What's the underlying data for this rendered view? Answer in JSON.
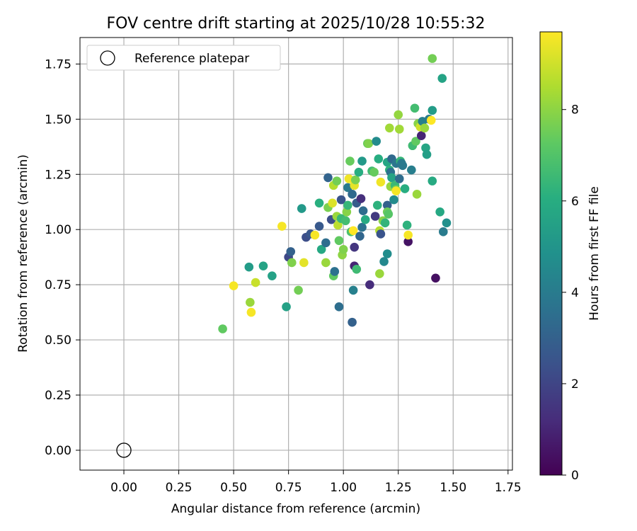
{
  "chart_data": {
    "type": "scatter",
    "title": "FOV centre drift starting at 2025/10/28 10:55:32",
    "xlabel": "Angular distance from reference (arcmin)",
    "ylabel": "Rotation from reference (arcmin)",
    "xlim": [
      -0.2,
      1.77
    ],
    "ylim": [
      -0.09,
      1.87
    ],
    "xticks": [
      0.0,
      0.25,
      0.5,
      0.75,
      1.0,
      1.25,
      1.5,
      1.75
    ],
    "xtick_labels": [
      "0.00",
      "0.25",
      "0.50",
      "0.75",
      "1.00",
      "1.25",
      "1.50",
      "1.75"
    ],
    "yticks": [
      0.0,
      0.25,
      0.5,
      0.75,
      1.0,
      1.25,
      1.5,
      1.75
    ],
    "ytick_labels": [
      "0.00",
      "0.25",
      "0.50",
      "0.75",
      "1.00",
      "1.25",
      "1.50",
      "1.75"
    ],
    "grid": true,
    "legend": {
      "position": "top-left",
      "label": "Reference platepar"
    },
    "reference_point": {
      "x": 0.0,
      "y": 0.0
    },
    "colorbar": {
      "label": "Hours from first FF file",
      "min": 0,
      "max": 9.7,
      "ticks": [
        0,
        2,
        4,
        6,
        8
      ],
      "tick_labels": [
        "0",
        "2",
        "4",
        "6",
        "8"
      ],
      "colormap": "viridis"
    },
    "points": [
      [
        0.45,
        0.55,
        7.3
      ],
      [
        0.5,
        0.745,
        9.6
      ],
      [
        0.57,
        0.83,
        5.3
      ],
      [
        0.575,
        0.67,
        8.2
      ],
      [
        0.58,
        0.625,
        9.6
      ],
      [
        0.6,
        0.76,
        8.9
      ],
      [
        0.635,
        0.835,
        5.6
      ],
      [
        0.675,
        0.79,
        5.5
      ],
      [
        0.72,
        1.015,
        9.6
      ],
      [
        0.74,
        0.65,
        5.5
      ],
      [
        0.75,
        0.875,
        2.1
      ],
      [
        0.76,
        0.9,
        3.0
      ],
      [
        0.765,
        0.85,
        7.8
      ],
      [
        0.795,
        0.725,
        7.6
      ],
      [
        0.81,
        1.095,
        5.2
      ],
      [
        0.82,
        0.85,
        9.3
      ],
      [
        0.83,
        0.965,
        2.3
      ],
      [
        0.85,
        0.98,
        2.6
      ],
      [
        0.87,
        0.975,
        9.6
      ],
      [
        0.89,
        1.12,
        6.1
      ],
      [
        0.89,
        1.015,
        2.7
      ],
      [
        0.9,
        0.91,
        5.8
      ],
      [
        0.92,
        0.94,
        3.5
      ],
      [
        0.92,
        0.85,
        8.2
      ],
      [
        0.93,
        1.1,
        7.7
      ],
      [
        0.93,
        1.235,
        3.1
      ],
      [
        0.945,
        1.045,
        2.3
      ],
      [
        0.95,
        1.12,
        9.2
      ],
      [
        0.955,
        0.79,
        7.3
      ],
      [
        0.955,
        1.2,
        8.6
      ],
      [
        0.96,
        0.81,
        3.6
      ],
      [
        0.97,
        1.06,
        8.2
      ],
      [
        0.97,
        1.22,
        7.6
      ],
      [
        0.975,
        1.02,
        8.7
      ],
      [
        0.98,
        0.65,
        3.5
      ],
      [
        0.98,
        0.95,
        7.3
      ],
      [
        0.99,
        1.05,
        6.5
      ],
      [
        0.99,
        1.135,
        2.5
      ],
      [
        0.995,
        0.885,
        8.0
      ],
      [
        1.0,
        0.91,
        7.8
      ],
      [
        1.01,
        1.04,
        6.7
      ],
      [
        1.015,
        1.08,
        7.9
      ],
      [
        1.02,
        1.11,
        6.4
      ],
      [
        1.02,
        1.19,
        4.0
      ],
      [
        1.025,
        1.23,
        9.5
      ],
      [
        1.03,
        1.31,
        7.4
      ],
      [
        1.035,
        0.99,
        6.9
      ],
      [
        1.04,
        0.58,
        3.0
      ],
      [
        1.04,
        1.16,
        3.3
      ],
      [
        1.045,
        0.995,
        9.8
      ],
      [
        1.045,
        0.725,
        4.2
      ],
      [
        1.05,
        0.835,
        1.0
      ],
      [
        1.05,
        0.92,
        1.5
      ],
      [
        1.05,
        1.2,
        9.3
      ],
      [
        1.055,
        1.225,
        7.7
      ],
      [
        1.06,
        0.82,
        6.6
      ],
      [
        1.06,
        1.12,
        2.8
      ],
      [
        1.07,
        1.26,
        6.0
      ],
      [
        1.075,
        0.97,
        3.2
      ],
      [
        1.08,
        1.14,
        1.3
      ],
      [
        1.085,
        1.31,
        5.2
      ],
      [
        1.085,
        1.01,
        3.6
      ],
      [
        1.09,
        1.085,
        3.4
      ],
      [
        1.1,
        1.045,
        5.9
      ],
      [
        1.11,
        1.39,
        7.4
      ],
      [
        1.115,
        1.39,
        7.8
      ],
      [
        1.12,
        0.75,
        1.2
      ],
      [
        1.13,
        1.265,
        6.6
      ],
      [
        1.14,
        1.26,
        7.4
      ],
      [
        1.145,
        1.06,
        1.6
      ],
      [
        1.15,
        1.4,
        4.6
      ],
      [
        1.155,
        1.11,
        6.2
      ],
      [
        1.16,
        1.32,
        6.0
      ],
      [
        1.165,
        0.8,
        8.2
      ],
      [
        1.165,
        0.995,
        8.6
      ],
      [
        1.17,
        0.98,
        2.5
      ],
      [
        1.17,
        1.215,
        9.5
      ],
      [
        1.18,
        1.04,
        7.9
      ],
      [
        1.185,
        0.855,
        4.5
      ],
      [
        1.19,
        1.03,
        6.3
      ],
      [
        1.2,
        1.11,
        3.0
      ],
      [
        1.2,
        0.89,
        4.7
      ],
      [
        1.2,
        1.08,
        7.5
      ],
      [
        1.2,
        1.305,
        5.7
      ],
      [
        1.205,
        1.07,
        7.1
      ],
      [
        1.21,
        1.27,
        6.2
      ],
      [
        1.21,
        1.46,
        8.3
      ],
      [
        1.215,
        1.195,
        8.1
      ],
      [
        1.215,
        1.26,
        3.6
      ],
      [
        1.22,
        1.32,
        3.3
      ],
      [
        1.22,
        1.235,
        5.6
      ],
      [
        1.23,
        1.135,
        4.6
      ],
      [
        1.235,
        1.2,
        6.5
      ],
      [
        1.24,
        1.18,
        7.6
      ],
      [
        1.24,
        1.3,
        3.8
      ],
      [
        1.24,
        1.175,
        9.6
      ],
      [
        1.25,
        1.52,
        8.1
      ],
      [
        1.255,
        1.455,
        8.3
      ],
      [
        1.255,
        1.23,
        3.4
      ],
      [
        1.26,
        1.31,
        6.4
      ],
      [
        1.265,
        1.3,
        4.0
      ],
      [
        1.27,
        1.29,
        3.9
      ],
      [
        1.28,
        1.185,
        6.0
      ],
      [
        1.29,
        1.02,
        6.2
      ],
      [
        1.295,
        0.945,
        0.5
      ],
      [
        1.295,
        0.975,
        9.6
      ],
      [
        1.31,
        1.27,
        4.1
      ],
      [
        1.315,
        1.38,
        6.6
      ],
      [
        1.325,
        1.55,
        6.7
      ],
      [
        1.33,
        1.4,
        7.3
      ],
      [
        1.335,
        1.16,
        8.2
      ],
      [
        1.34,
        1.48,
        7.9
      ],
      [
        1.35,
        1.465,
        9.0
      ],
      [
        1.355,
        1.425,
        1.0
      ],
      [
        1.36,
        1.49,
        4.2
      ],
      [
        1.37,
        1.46,
        8.2
      ],
      [
        1.375,
        1.37,
        5.7
      ],
      [
        1.38,
        1.34,
        5.4
      ],
      [
        1.39,
        1.5,
        4.0
      ],
      [
        1.4,
        1.495,
        9.7
      ],
      [
        1.405,
        1.22,
        5.9
      ],
      [
        1.405,
        1.54,
        5.3
      ],
      [
        1.405,
        1.775,
        7.6
      ],
      [
        1.42,
        0.78,
        0.4
      ],
      [
        1.44,
        1.08,
        5.8
      ],
      [
        1.45,
        1.685,
        5.6
      ],
      [
        1.455,
        0.99,
        4.0
      ],
      [
        1.47,
        1.03,
        4.8
      ]
    ]
  }
}
